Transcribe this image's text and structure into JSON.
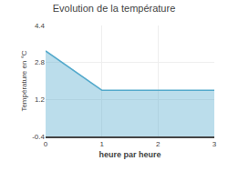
{
  "chart_data": {
    "type": "area",
    "title": "Evolution de la température",
    "xlabel": "heure par heure",
    "ylabel": "Température en °C",
    "x": [
      0,
      1,
      3
    ],
    "values": [
      3.3,
      1.6,
      1.6
    ],
    "color": "#55aacc",
    "xlim": [
      0,
      3
    ],
    "ylim": [
      -0.4,
      4.4
    ],
    "xticks": [
      0,
      1,
      2,
      3
    ],
    "yticks": [
      -0.4,
      1.2,
      2.8,
      4.4
    ],
    "grid": true
  }
}
